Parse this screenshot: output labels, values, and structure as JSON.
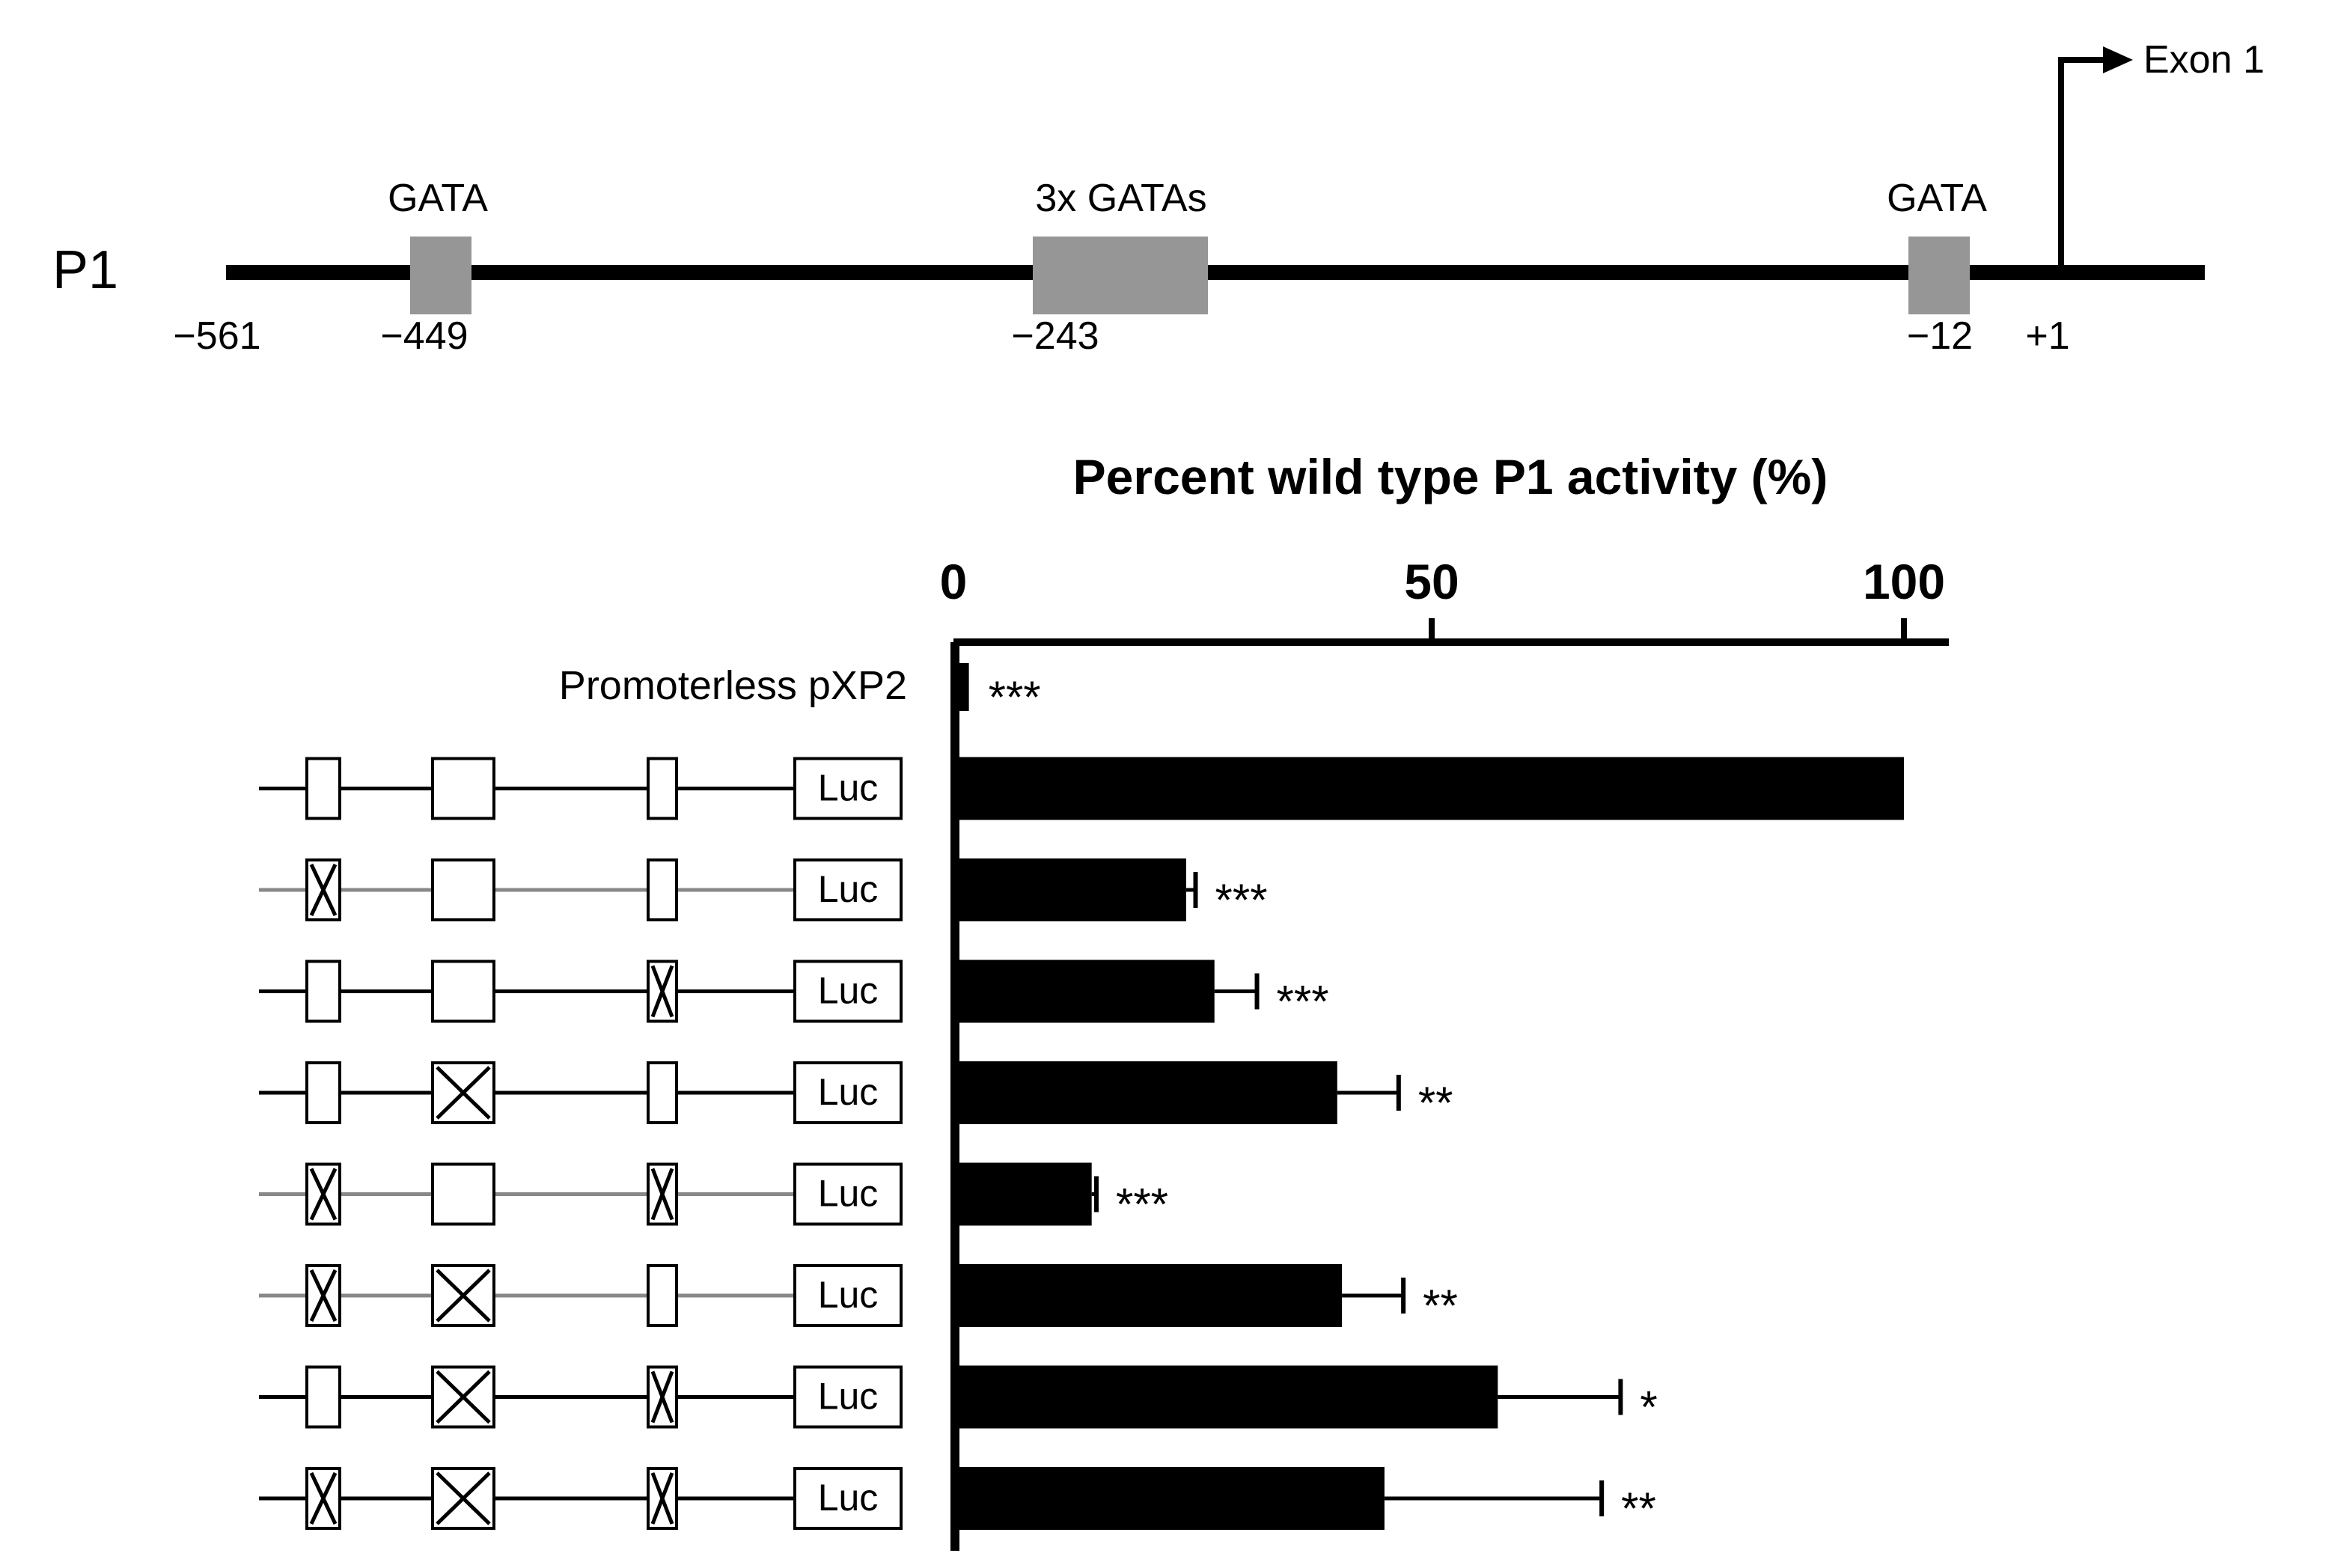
{
  "promoter": {
    "name": "P1",
    "exon_label": "Exon 1",
    "sites": [
      {
        "label": "GATA",
        "position": "−449"
      },
      {
        "label": "3x GATAs",
        "position": "−243"
      },
      {
        "label": "GATA",
        "position": "−12"
      }
    ],
    "start_position": "−561",
    "tss_position": "+1"
  },
  "chart_data": {
    "type": "bar",
    "orientation": "horizontal",
    "title": "Percent wild type P1 activity (%)",
    "xlabel": "Percent wild type P1 activity (%)",
    "xlim": [
      0,
      105
    ],
    "xticks": [
      0,
      50,
      100
    ],
    "xtick_labels": [
      "0",
      "50",
      "100"
    ],
    "axis_position": "top",
    "grid": false,
    "bar_color": "#000000",
    "categories": [
      "Promoterless pXP2",
      "wild type",
      "−449 GATA mutated",
      "−12 GATA mutated",
      "3x GATAs mutated",
      "−449 and −12 GATA mutated",
      "−449 GATA and 3x GATAs mutated",
      "3x GATAs and −12 GATA mutated",
      "all GATAs mutated"
    ],
    "category_labels": [
      "Promoterless pXP2",
      "",
      "",
      "",
      "",
      "",
      "",
      "",
      ""
    ],
    "values": [
      1,
      100,
      24,
      27,
      40,
      14,
      40.5,
      57,
      45
    ],
    "errors": [
      0,
      0,
      1,
      4.5,
      6.5,
      0.5,
      6.5,
      13,
      23
    ],
    "significance": [
      "***",
      "",
      "***",
      "***",
      "**",
      "***",
      "**",
      "*",
      "**"
    ],
    "constructs": [
      {
        "mut": [
          false,
          false,
          false
        ],
        "line": "#000000"
      },
      {
        "mut": [
          true,
          false,
          false
        ],
        "line": "#888888"
      },
      {
        "mut": [
          false,
          false,
          true
        ],
        "line": "#000000"
      },
      {
        "mut": [
          false,
          true,
          false
        ],
        "line": "#000000"
      },
      {
        "mut": [
          true,
          false,
          true
        ],
        "line": "#888888"
      },
      {
        "mut": [
          true,
          true,
          false
        ],
        "line": "#888888"
      },
      {
        "mut": [
          false,
          true,
          true
        ],
        "line": "#000000"
      },
      {
        "mut": [
          true,
          true,
          true
        ],
        "line": "#000000"
      }
    ],
    "reporter_label": "Luc"
  },
  "colors": {
    "ink": "#000000",
    "gata_box": "#969696",
    "grey_line": "#888888"
  }
}
